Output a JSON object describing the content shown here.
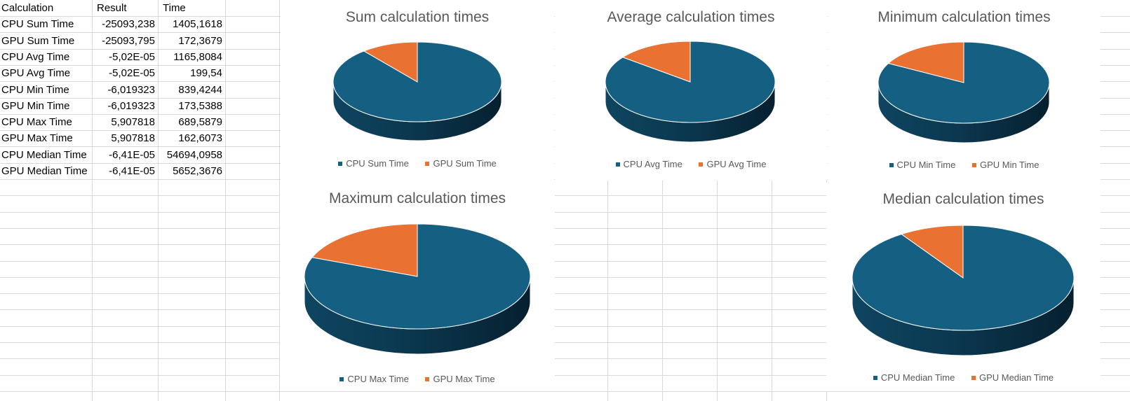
{
  "sheet": {
    "headers": [
      "Calculation",
      "Result",
      "Time"
    ],
    "rows": [
      [
        "CPU Sum Time",
        "-25093,238",
        "1405,1618"
      ],
      [
        "GPU Sum Time",
        "-25093,795",
        "172,3679"
      ],
      [
        "CPU Avg Time",
        "-5,02E-05",
        "1165,8084"
      ],
      [
        "GPU Avg Time",
        "-5,02E-05",
        "199,54"
      ],
      [
        "CPU Min Time",
        "-6,019323",
        "839,4244"
      ],
      [
        "GPU Min Time",
        "-6,019323",
        "173,5388"
      ],
      [
        "CPU Max Time",
        "5,907818",
        "689,5879"
      ],
      [
        "GPU Max Time",
        "5,907818",
        "162,6073"
      ],
      [
        "CPU Median Time",
        "-6,41E-05",
        "54694,0958"
      ],
      [
        "GPU Median Time",
        "-6,41E-05",
        "5652,3676"
      ]
    ]
  },
  "colors": {
    "cpu": "#156082",
    "gpu": "#e97132",
    "title": "#595959",
    "grid": "#d9d9d9"
  },
  "chart_data": [
    {
      "type": "pie",
      "title": "Sum calculation times",
      "categories": [
        "CPU Sum Time",
        "GPU Sum Time"
      ],
      "values": [
        1405.1618,
        172.3679
      ],
      "legend": "bottom"
    },
    {
      "type": "pie",
      "title": "Average calculation times",
      "categories": [
        "CPU Avg Time",
        "GPU Avg Time"
      ],
      "values": [
        1165.8084,
        199.54
      ],
      "legend": "bottom"
    },
    {
      "type": "pie",
      "title": "Minimum calculation times",
      "categories": [
        "CPU Min Time",
        "GPU Min Time"
      ],
      "values": [
        839.4244,
        173.5388
      ],
      "legend": "bottom"
    },
    {
      "type": "pie",
      "title": "Maximum calculation times",
      "categories": [
        "CPU Max Time",
        "GPU Max Time"
      ],
      "values": [
        689.5879,
        162.6073
      ],
      "legend": "bottom"
    },
    {
      "type": "pie",
      "title": "Median calculation times",
      "categories": [
        "CPU Median Time",
        "GPU Median Time"
      ],
      "values": [
        54694.0958,
        5652.3676
      ],
      "legend": "bottom"
    }
  ]
}
